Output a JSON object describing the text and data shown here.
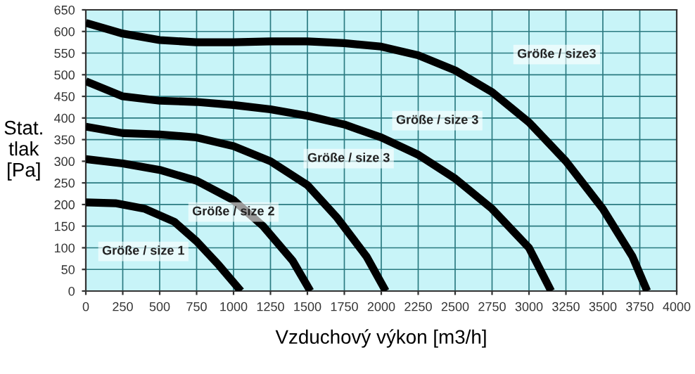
{
  "chart_data": {
    "type": "line",
    "xlabel": "Vzduchový výkon [m3/h]",
    "ylabel": "Stat.\ntlak\n[Pa]",
    "xlim": [
      0,
      4000
    ],
    "xticks": [
      0,
      250,
      500,
      750,
      1000,
      1250,
      1500,
      1750,
      2000,
      2250,
      2500,
      2750,
      3000,
      3250,
      3500,
      3750,
      4000
    ],
    "ylim": [
      0,
      650
    ],
    "yticks": [
      0,
      50,
      100,
      150,
      200,
      250,
      300,
      350,
      400,
      450,
      500,
      550,
      600,
      650
    ],
    "grid": true,
    "marker": "none",
    "line_style": "solid",
    "series": [
      {
        "color": "#000000",
        "x": [
          0,
          200,
          400,
          600,
          750,
          900,
          1050
        ],
        "values": [
          205,
          203,
          190,
          160,
          115,
          60,
          0
        ]
      },
      {
        "color": "#000000",
        "x": [
          0,
          250,
          500,
          750,
          1000,
          1200,
          1400,
          1520
        ],
        "values": [
          305,
          295,
          280,
          255,
          210,
          150,
          70,
          0
        ]
      },
      {
        "color": "#000000",
        "x": [
          0,
          250,
          500,
          750,
          1000,
          1250,
          1500,
          1700,
          1900,
          2030
        ],
        "values": [
          380,
          365,
          362,
          355,
          335,
          300,
          245,
          170,
          80,
          0
        ]
      },
      {
        "color": "#000000",
        "x": [
          0,
          250,
          500,
          750,
          1000,
          1250,
          1500,
          1750,
          2000,
          2250,
          2500,
          2750,
          3000,
          3150
        ],
        "values": [
          485,
          450,
          440,
          437,
          430,
          420,
          405,
          385,
          355,
          315,
          260,
          190,
          100,
          0
        ]
      },
      {
        "color": "#000000",
        "x": [
          0,
          250,
          500,
          750,
          1000,
          1250,
          1500,
          1750,
          2000,
          2250,
          2500,
          2750,
          3000,
          3250,
          3500,
          3700,
          3800
        ],
        "values": [
          620,
          595,
          580,
          575,
          575,
          577,
          577,
          573,
          565,
          545,
          510,
          460,
          390,
          300,
          190,
          80,
          0
        ]
      }
    ],
    "annotations": [
      "Größe / size 1",
      "Größe / size 2",
      "Größe / size 3",
      "Größe / size 3",
      "Größe / size3"
    ]
  }
}
